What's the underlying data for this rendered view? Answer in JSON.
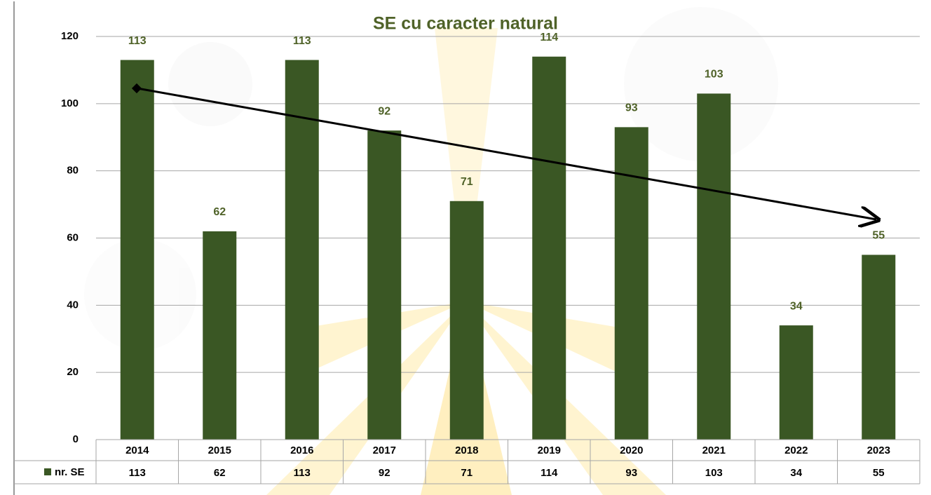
{
  "chart_data": {
    "type": "bar",
    "title": "SE cu caracter natural",
    "categories": [
      "2014",
      "2015",
      "2016",
      "2017",
      "2018",
      "2019",
      "2020",
      "2021",
      "2022",
      "2023"
    ],
    "series": [
      {
        "name": "nr. SE",
        "color": "#3a5724",
        "values": [
          113,
          62,
          113,
          92,
          71,
          114,
          93,
          103,
          34,
          55
        ]
      }
    ],
    "ylim": [
      0,
      120
    ],
    "yticks": [
      0,
      20,
      40,
      60,
      80,
      100,
      120
    ],
    "grid": true
  }
}
